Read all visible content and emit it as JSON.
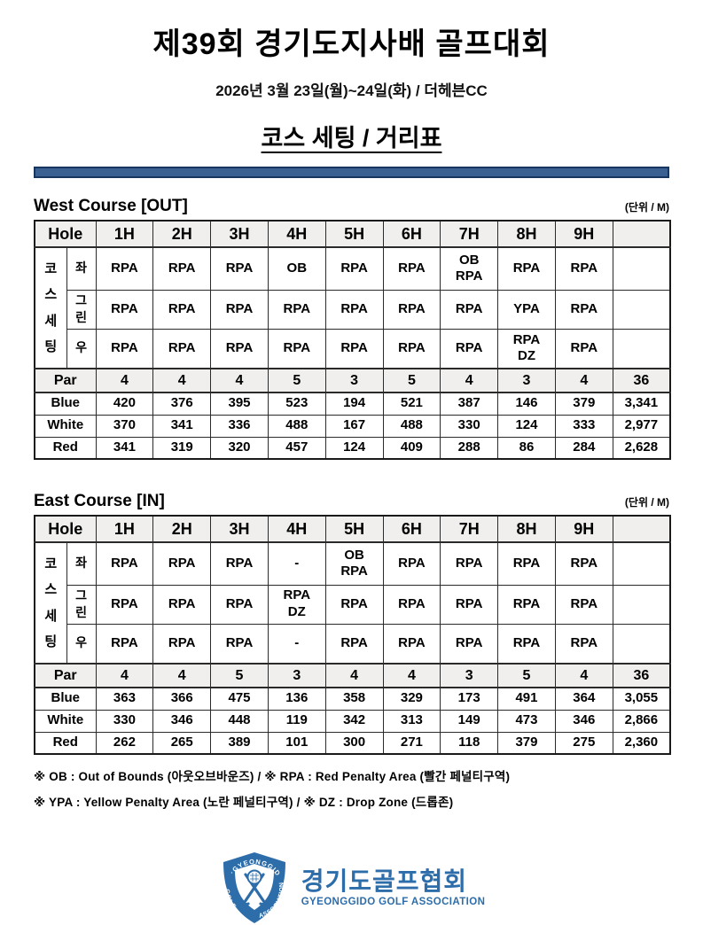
{
  "header": {
    "title": "제39회 경기도지사배 골프대회",
    "subtitle": "2026년 3월 23일(월)~24일(화) / 더헤븐CC",
    "section_title": "코스 세팅 / 거리표"
  },
  "unit_label": "(단위 / M)",
  "tables": [
    {
      "title": "West Course [OUT]",
      "hole_header": "Hole",
      "holes": [
        "1H",
        "2H",
        "3H",
        "4H",
        "5H",
        "6H",
        "7H",
        "8H",
        "9H",
        ""
      ],
      "setting_group_label": "코스세팅",
      "setting_rows": [
        {
          "label": "좌",
          "cells": [
            "RPA",
            "RPA",
            "RPA",
            "OB",
            "RPA",
            "RPA",
            "OB\nRPA",
            "RPA",
            "RPA",
            ""
          ]
        },
        {
          "label": "그린",
          "cells": [
            "RPA",
            "RPA",
            "RPA",
            "RPA",
            "RPA",
            "RPA",
            "RPA",
            "YPA",
            "RPA",
            ""
          ]
        },
        {
          "label": "우",
          "cells": [
            "RPA",
            "RPA",
            "RPA",
            "RPA",
            "RPA",
            "RPA",
            "RPA",
            "RPA\nDZ",
            "RPA",
            ""
          ]
        }
      ],
      "par": {
        "label": "Par",
        "values": [
          "4",
          "4",
          "4",
          "5",
          "3",
          "5",
          "4",
          "3",
          "4",
          "36"
        ]
      },
      "tees": [
        {
          "label": "Blue",
          "values": [
            "420",
            "376",
            "395",
            "523",
            "194",
            "521",
            "387",
            "146",
            "379",
            "3,341"
          ]
        },
        {
          "label": "White",
          "values": [
            "370",
            "341",
            "336",
            "488",
            "167",
            "488",
            "330",
            "124",
            "333",
            "2,977"
          ]
        },
        {
          "label": "Red",
          "values": [
            "341",
            "319",
            "320",
            "457",
            "124",
            "409",
            "288",
            "86",
            "284",
            "2,628"
          ]
        }
      ]
    },
    {
      "title": "East Course [IN]",
      "hole_header": "Hole",
      "holes": [
        "1H",
        "2H",
        "3H",
        "4H",
        "5H",
        "6H",
        "7H",
        "8H",
        "9H",
        ""
      ],
      "setting_group_label": "코스세팅",
      "setting_rows": [
        {
          "label": "좌",
          "cells": [
            "RPA",
            "RPA",
            "RPA",
            "-",
            "OB\nRPA",
            "RPA",
            "RPA",
            "RPA",
            "RPA",
            ""
          ]
        },
        {
          "label": "그린",
          "cells": [
            "RPA",
            "RPA",
            "RPA",
            "RPA\nDZ",
            "RPA",
            "RPA",
            "RPA",
            "RPA",
            "RPA",
            ""
          ]
        },
        {
          "label": "우",
          "cells": [
            "RPA",
            "RPA",
            "RPA",
            "-",
            "RPA",
            "RPA",
            "RPA",
            "RPA",
            "RPA",
            ""
          ]
        }
      ],
      "par": {
        "label": "Par",
        "values": [
          "4",
          "4",
          "5",
          "3",
          "4",
          "4",
          "3",
          "5",
          "4",
          "36"
        ]
      },
      "tees": [
        {
          "label": "Blue",
          "values": [
            "363",
            "366",
            "475",
            "136",
            "358",
            "329",
            "173",
            "491",
            "364",
            "3,055"
          ]
        },
        {
          "label": "White",
          "values": [
            "330",
            "346",
            "448",
            "119",
            "342",
            "313",
            "149",
            "473",
            "346",
            "2,866"
          ]
        },
        {
          "label": "Red",
          "values": [
            "262",
            "265",
            "389",
            "101",
            "300",
            "271",
            "118",
            "379",
            "275",
            "2,360"
          ]
        }
      ]
    }
  ],
  "footnotes": [
    "※ OB : Out of Bounds (아웃오브바운즈) / ※ RPA : Red Penalty Area (빨간 페널티구역)",
    "※ YPA : Yellow Penalty Area (노란 페널티구역) / ※ DZ : Drop Zone (드롭존)"
  ],
  "logo": {
    "badge_text": "GYEONGGIDO GOLF ASSOCIATION",
    "korean_name": "경기도골프협회",
    "english_name": "GYEONGGIDO GOLF ASSOCIATION",
    "brand_color": "#2d6da9"
  },
  "colors": {
    "header_row_bg": "#f0efed",
    "divider_fill": "#3a6191",
    "divider_border": "#17355e",
    "table_border": "#1a1a1a",
    "logo_blue": "#2d6da9"
  }
}
